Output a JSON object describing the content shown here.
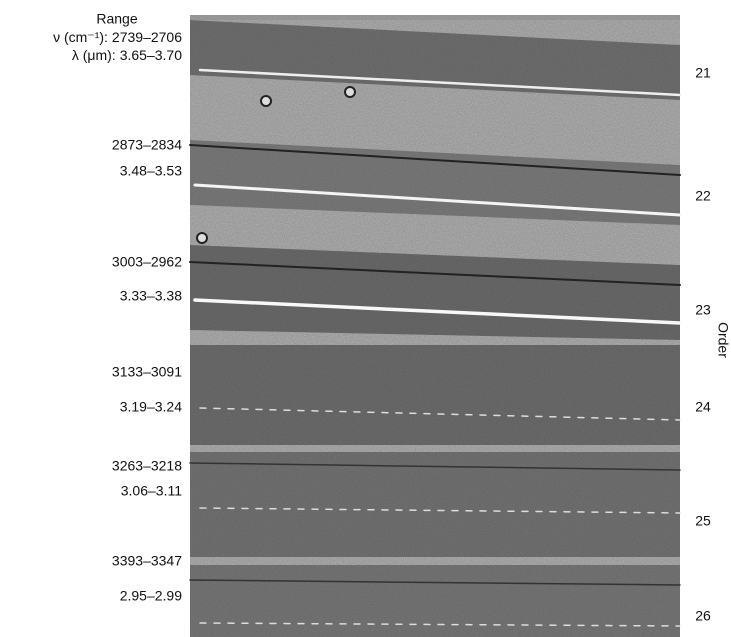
{
  "header": {
    "title": "Range",
    "nu_label": "ν (cm⁻¹):",
    "lambda_label": "λ (μm):"
  },
  "axis_label": "Order",
  "rows": [
    {
      "wavenumber": "2739–2706",
      "wavelength": "3.65–3.70",
      "order": "21"
    },
    {
      "wavenumber": "2873–2834",
      "wavelength": "3.48–3.53",
      "order": "22"
    },
    {
      "wavenumber": "3003–2962",
      "wavelength": "3.33–3.38",
      "order": "23"
    },
    {
      "wavenumber": "3133–3091",
      "wavelength": "3.19–3.24",
      "order": "24"
    },
    {
      "wavenumber": "3263–3218",
      "wavelength": "3.06–3.11",
      "order": "25"
    },
    {
      "wavenumber": "3393–3347",
      "wavelength": "2.95–2.99",
      "order": "26"
    }
  ]
}
